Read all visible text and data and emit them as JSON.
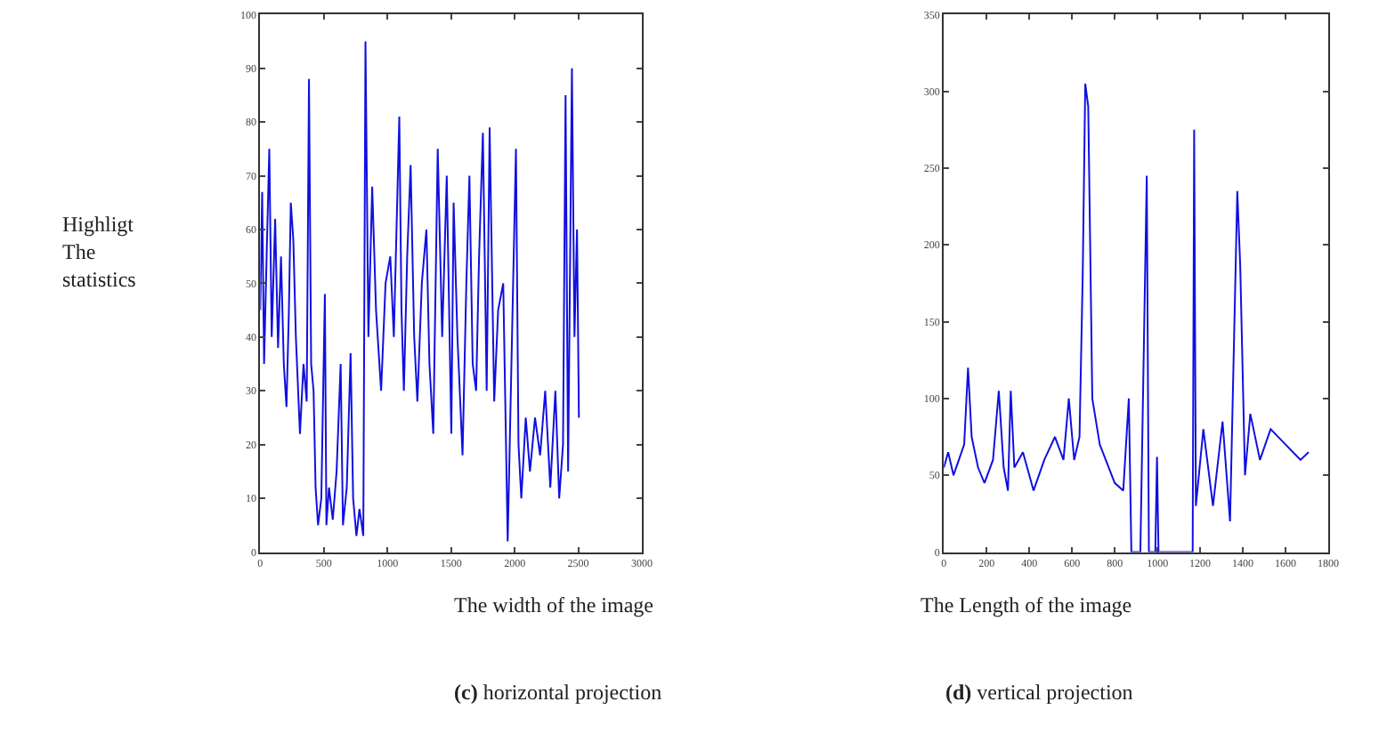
{
  "chart_data": [
    {
      "type": "line",
      "xlabel": "The width of the image",
      "ylabel": "Highligt The statistics",
      "annotations": [
        "(c) horizontal projection"
      ],
      "xlim": [
        0,
        3000
      ],
      "xticks": [
        0,
        500,
        1000,
        1500,
        2000,
        2500,
        3000
      ],
      "ylim": [
        0,
        100
      ],
      "yticks": [
        0,
        10,
        20,
        30,
        40,
        50,
        60,
        70,
        80,
        90,
        100
      ],
      "series": [
        {
          "color": "#1010e0",
          "x": [
            0,
            15,
            30,
            50,
            71,
            90,
            117,
            140,
            163,
            185,
            206,
            225,
            240,
            260,
            280,
            312,
            340,
            365,
            383,
            400,
            419,
            435,
            454,
            480,
            508,
            520,
            540,
            570,
            600,
            632,
            650,
            680,
            710,
            730,
            756,
            780,
            810,
            827,
            850,
            880,
            910,
            950,
            985,
            1022,
            1050,
            1093,
            1110,
            1129,
            1155,
            1182,
            1210,
            1235,
            1270,
            1306,
            1330,
            1360,
            1395,
            1430,
            1466,
            1502,
            1520,
            1550,
            1590,
            1620,
            1644,
            1670,
            1697,
            1720,
            1750,
            1780,
            1803,
            1839,
            1870,
            1910,
            1945,
            1970,
            2010,
            2030,
            2052,
            2087,
            2120,
            2160,
            2200,
            2240,
            2280,
            2320,
            2350,
            2380,
            2400,
            2420,
            2450,
            2470,
            2490,
            2505
          ],
          "values": [
            45,
            67,
            35,
            55,
            75,
            40,
            62,
            38,
            55,
            35,
            27,
            45,
            65,
            58,
            40,
            22,
            35,
            28,
            88,
            35,
            30,
            12,
            5,
            10,
            48,
            5,
            12,
            6,
            15,
            35,
            5,
            12,
            37,
            10,
            3,
            8,
            3,
            95,
            40,
            68,
            45,
            30,
            50,
            55,
            40,
            81,
            45,
            30,
            55,
            72,
            40,
            28,
            50,
            60,
            35,
            22,
            75,
            40,
            70,
            22,
            65,
            40,
            18,
            50,
            70,
            35,
            30,
            55,
            78,
            30,
            79,
            28,
            45,
            50,
            2,
            30,
            75,
            20,
            10,
            25,
            15,
            25,
            18,
            30,
            12,
            30,
            10,
            20,
            85,
            15,
            90,
            40,
            60,
            25
          ]
        }
      ]
    },
    {
      "type": "line",
      "xlabel": "The Length of the image",
      "annotations": [
        "(d) vertical projection"
      ],
      "xlim": [
        0,
        1800
      ],
      "xticks": [
        0,
        200,
        400,
        600,
        800,
        1000,
        1200,
        1400,
        1600,
        1800
      ],
      "ylim": [
        0,
        350
      ],
      "yticks": [
        0,
        50,
        100,
        150,
        200,
        250,
        300,
        350
      ],
      "series": [
        {
          "color": "#1010e0",
          "x": [
            0,
            20,
            45,
            70,
            95,
            113,
            130,
            160,
            190,
            230,
            257,
            280,
            300,
            313,
            330,
            370,
            420,
            470,
            520,
            560,
            585,
            610,
            635,
            650,
            662,
            676,
            695,
            730,
            800,
            840,
            866,
            878,
            920,
            950,
            960,
            990,
            998,
            1005,
            1080,
            1165,
            1172,
            1180,
            1215,
            1260,
            1305,
            1340,
            1359,
            1374,
            1388,
            1410,
            1435,
            1480,
            1530,
            1600,
            1670,
            1708
          ],
          "values": [
            55,
            65,
            50,
            60,
            70,
            120,
            75,
            55,
            45,
            60,
            105,
            55,
            40,
            105,
            55,
            65,
            40,
            60,
            75,
            60,
            100,
            60,
            75,
            180,
            305,
            290,
            100,
            70,
            45,
            40,
            100,
            0,
            0,
            245,
            0,
            0,
            62,
            0,
            0,
            0,
            275,
            30,
            80,
            30,
            85,
            20,
            140,
            235,
            185,
            50,
            90,
            60,
            80,
            70,
            60,
            65
          ]
        }
      ]
    }
  ]
}
